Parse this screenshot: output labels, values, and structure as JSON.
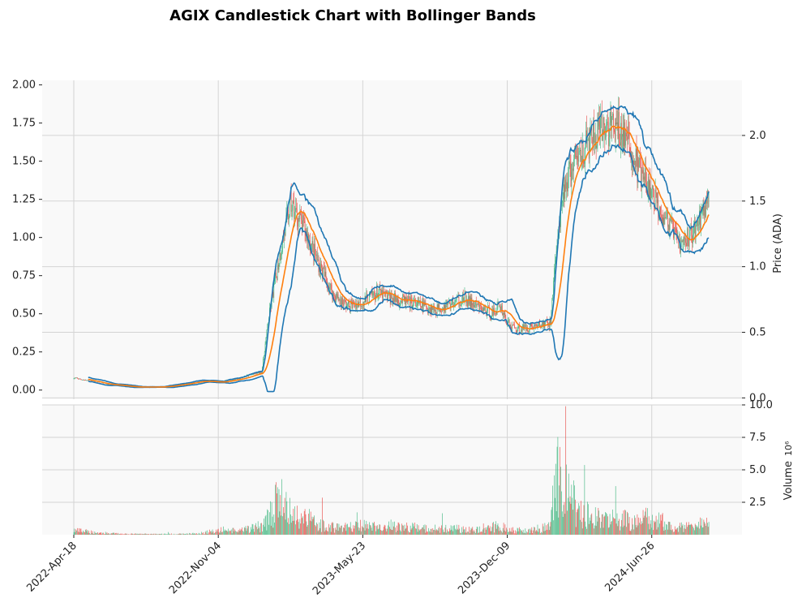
{
  "chart_data": {
    "type": "candlestick",
    "title": "AGIX Candlestick Chart with Bollinger Bands",
    "price_panel": {
      "ylabel": "Price (ADA)",
      "left_ticks": [
        "0.00",
        "0.25",
        "0.50",
        "0.75",
        "1.00",
        "1.25",
        "1.50",
        "1.75",
        "2.00"
      ],
      "left_tick_values": [
        0,
        0.25,
        0.5,
        0.75,
        1.0,
        1.25,
        1.5,
        1.75,
        2.0
      ],
      "right_ticks": [
        "0.0",
        "0.5",
        "1.0",
        "1.5",
        "2.0"
      ],
      "right_tick_values": [
        0,
        0.5,
        1.0,
        1.5,
        2.0
      ],
      "ylim": [
        -0.06,
        2.03
      ],
      "right_ylim": [
        -0.01,
        2.42
      ],
      "grid": true
    },
    "volume_panel": {
      "ylabel": "Volume",
      "ylabel_exponent": "10⁶",
      "ticks": [
        "2.5",
        "5.0",
        "7.5",
        "10.0"
      ],
      "tick_values": [
        2.5,
        5.0,
        7.5,
        10.0
      ],
      "ylim": [
        0,
        10.0
      ],
      "grid": true
    },
    "x_ticks": [
      "2022-Apr-18",
      "2022-Nov-04",
      "2023-May-23",
      "2023-Dec-09",
      "2024-Jun-26"
    ],
    "x_tick_index": [
      0,
      200,
      400,
      600,
      800
    ],
    "n_days": 880,
    "colors": {
      "up": "#3fb67f",
      "down": "#e84a45",
      "moving_average": "#ff7f0e",
      "bands": "#1f77b4",
      "panel_bg": "#f9f9f9",
      "grid": "#d4d4d4"
    },
    "series_shape": {
      "x": [
        0,
        40,
        80,
        120,
        150,
        175,
        200,
        230,
        260,
        270,
        285,
        300,
        320,
        340,
        360,
        380,
        400,
        420,
        440,
        460,
        500,
        540,
        560,
        580,
        590,
        600,
        605,
        615,
        640,
        660,
        665,
        680,
        700,
        720,
        740,
        760,
        780,
        800,
        820,
        840,
        860,
        880
      ],
      "close": [
        0.08,
        0.04,
        0.02,
        0.02,
        0.04,
        0.06,
        0.05,
        0.08,
        0.12,
        0.48,
        0.88,
        1.22,
        1.05,
        0.82,
        0.62,
        0.55,
        0.58,
        0.64,
        0.6,
        0.58,
        0.53,
        0.6,
        0.54,
        0.5,
        0.56,
        0.44,
        0.42,
        0.4,
        0.42,
        0.44,
        0.8,
        1.35,
        1.55,
        1.65,
        1.72,
        1.7,
        1.46,
        1.28,
        1.12,
        0.95,
        1.05,
        1.28
      ],
      "volume": [
        0.3,
        0.1,
        0.05,
        0.05,
        0.05,
        0.1,
        0.3,
        0.25,
        0.6,
        1.2,
        2.5,
        1.4,
        1.2,
        0.7,
        0.5,
        0.5,
        0.6,
        0.5,
        0.6,
        0.5,
        0.4,
        0.4,
        0.3,
        0.5,
        0.6,
        0.4,
        0.3,
        0.3,
        0.4,
        0.5,
        4.5,
        3.0,
        1.5,
        1.2,
        1.0,
        1.0,
        0.8,
        1.2,
        0.8,
        0.5,
        0.6,
        0.8
      ]
    }
  }
}
